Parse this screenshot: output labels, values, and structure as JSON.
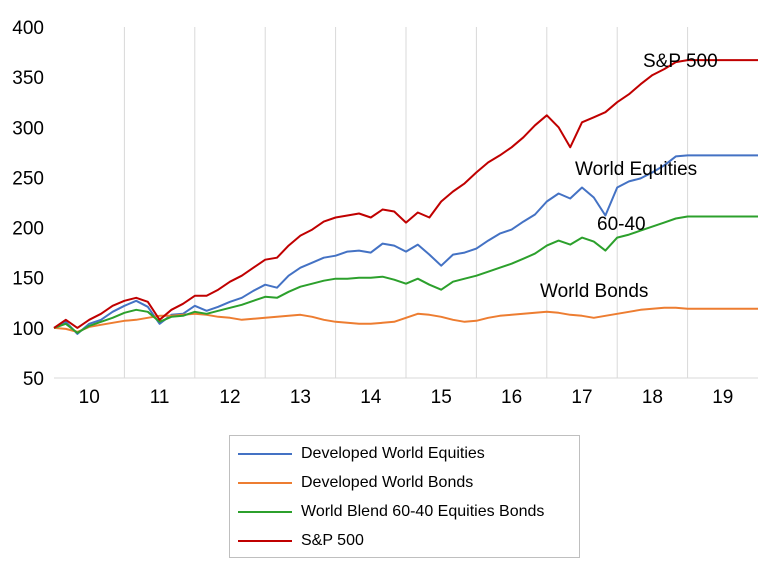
{
  "chart_data": {
    "type": "line",
    "title": "",
    "xlabel": "",
    "ylabel": "",
    "x": [
      9.5,
      9.667,
      9.833,
      10,
      10.167,
      10.333,
      10.5,
      10.667,
      10.833,
      11,
      11.167,
      11.333,
      11.5,
      11.667,
      11.833,
      12,
      12.167,
      12.333,
      12.5,
      12.667,
      12.833,
      13,
      13.167,
      13.333,
      13.5,
      13.667,
      13.833,
      14,
      14.167,
      14.333,
      14.5,
      14.667,
      14.833,
      15,
      15.167,
      15.333,
      15.5,
      15.667,
      15.833,
      16,
      16.167,
      16.333,
      16.5,
      16.667,
      16.833,
      17,
      17.167,
      17.333,
      17.5,
      17.667,
      17.833,
      18,
      18.167,
      18.333,
      18.5,
      18.667,
      18.833,
      19,
      19.167,
      19.333,
      19.5
    ],
    "xlim": [
      9.5,
      19.5
    ],
    "xticks": [
      10,
      11,
      12,
      13,
      14,
      15,
      16,
      17,
      18,
      19
    ],
    "xtick_labels": [
      "10",
      "11",
      "12",
      "13",
      "14",
      "15",
      "16",
      "17",
      "18",
      "19"
    ],
    "ylim": [
      50,
      400
    ],
    "yticks": [
      50,
      100,
      150,
      200,
      250,
      300,
      350,
      400
    ],
    "ytick_labels": [
      "50",
      "100",
      "150",
      "200",
      "250",
      "300",
      "350",
      "400"
    ],
    "grid": "vertical",
    "legend_position": "bottom",
    "series": [
      {
        "name": "Developed World Equities",
        "color": "#4472c4",
        "values": [
          100,
          106,
          94,
          104,
          108,
          116,
          122,
          127,
          121,
          104,
          113,
          114,
          122,
          117,
          121,
          126,
          130,
          137,
          143,
          140,
          152,
          160,
          165,
          170,
          172,
          176,
          177,
          175,
          184,
          182,
          176,
          183,
          173,
          162,
          173,
          175,
          179,
          187,
          194,
          198,
          206,
          213,
          226,
          234,
          229,
          240,
          230,
          212,
          240,
          246,
          249,
          255,
          262,
          271,
          272,
          272,
          272,
          272,
          272,
          272,
          272
        ]
      },
      {
        "name": "Developed World Bonds",
        "color": "#ed7d31",
        "values": [
          100,
          99,
          96,
          101,
          103,
          105,
          107,
          108,
          110,
          112,
          112,
          113,
          114,
          113,
          111,
          110,
          108,
          109,
          110,
          111,
          112,
          113,
          111,
          108,
          106,
          105,
          104,
          104,
          105,
          106,
          110,
          114,
          113,
          111,
          108,
          106,
          107,
          110,
          112,
          113,
          114,
          115,
          116,
          115,
          113,
          112,
          110,
          112,
          114,
          116,
          118,
          119,
          120,
          120,
          119,
          119,
          119,
          119,
          119,
          119,
          119
        ]
      },
      {
        "name": "World Blend 60-40 Equities Bonds",
        "color": "#2ca02c",
        "values": [
          100,
          104,
          95,
          102,
          106,
          110,
          115,
          118,
          116,
          106,
          111,
          112,
          116,
          114,
          117,
          120,
          123,
          127,
          131,
          130,
          136,
          141,
          144,
          147,
          149,
          149,
          150,
          150,
          151,
          148,
          144,
          149,
          143,
          138,
          146,
          149,
          152,
          156,
          160,
          164,
          169,
          174,
          182,
          187,
          183,
          190,
          186,
          177,
          190,
          193,
          197,
          201,
          205,
          209,
          211,
          211,
          211,
          211,
          211,
          211,
          211
        ]
      },
      {
        "name": "S&P 500",
        "color": "#c00000",
        "values": [
          100,
          108,
          100,
          108,
          114,
          122,
          127,
          130,
          126,
          108,
          118,
          124,
          132,
          132,
          138,
          146,
          152,
          160,
          168,
          170,
          182,
          192,
          198,
          206,
          210,
          212,
          214,
          210,
          218,
          216,
          205,
          215,
          210,
          226,
          236,
          244,
          255,
          265,
          272,
          280,
          290,
          302,
          312,
          300,
          280,
          305,
          310,
          315,
          325,
          333,
          343,
          352,
          358,
          365,
          367,
          367,
          367,
          367,
          367,
          367,
          367
        ]
      }
    ],
    "annotations": [
      "S&P 500",
      "World Equities",
      "60-40",
      "World Bonds"
    ]
  },
  "legend": {
    "items": [
      {
        "label": "Developed World Equities",
        "color": "#4472c4"
      },
      {
        "label": "Developed World Bonds",
        "color": "#ed7d31"
      },
      {
        "label": "World Blend 60-40 Equities Bonds",
        "color": "#2ca02c"
      },
      {
        "label": "S&P 500",
        "color": "#c00000"
      }
    ]
  }
}
